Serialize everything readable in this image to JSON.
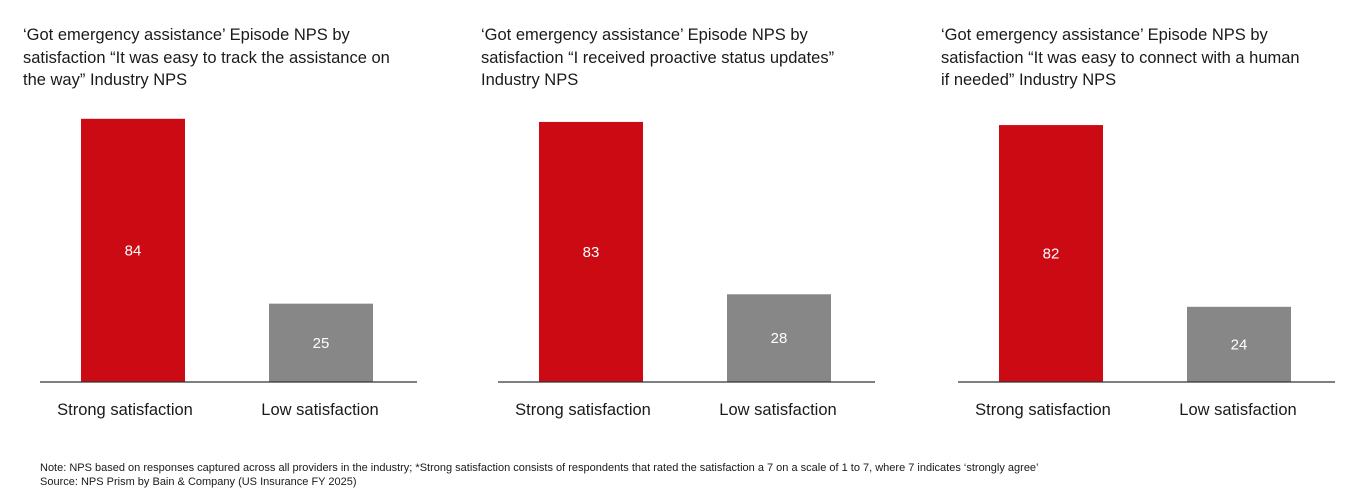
{
  "colors": {
    "strong": "#cc0a14",
    "low": "#878787",
    "axis": "#333333"
  },
  "chart_data": [
    {
      "type": "bar",
      "title": "‘Got emergency assistance’ Episode NPS by satisfaction “It was easy to track the assistance on the way” Industry NPS",
      "title_lines": [
        "‘Got emergency assistance’ Episode NPS by",
        "satisfaction “It was easy to track the assistance on",
        "the way” Industry NPS"
      ],
      "categories": [
        "Strong satisfaction",
        "Low satisfaction"
      ],
      "values": [
        84,
        25
      ],
      "ylim": [
        0,
        90
      ]
    },
    {
      "type": "bar",
      "title": "‘Got emergency assistance’ Episode NPS by satisfaction “I received proactive status updates” Industry NPS",
      "title_lines": [
        "‘Got emergency assistance’ Episode NPS by",
        "satisfaction “I received proactive status updates”",
        "Industry NPS"
      ],
      "categories": [
        "Strong satisfaction",
        "Low satisfaction"
      ],
      "values": [
        83,
        28
      ],
      "ylim": [
        0,
        90
      ]
    },
    {
      "type": "bar",
      "title": "‘Got emergency assistance’ Episode NPS by satisfaction “It was easy to connect with a human if needed” Industry NPS",
      "title_lines": [
        "‘Got emergency assistance’ Episode NPS by",
        "satisfaction “It was easy to connect with a human",
        "if needed” Industry NPS"
      ],
      "categories": [
        "Strong satisfaction",
        "Low satisfaction"
      ],
      "values": [
        82,
        24
      ],
      "ylim": [
        0,
        90
      ]
    }
  ],
  "footer": {
    "note": "Note: NPS based on responses captured across all providers in the industry; *Strong satisfaction consists of respondents that rated the satisfaction a 7 on a scale of 1 to 7, where 7 indicates ‘strongly agree’",
    "source": "Source: NPS Prism by Bain & Company (US Insurance FY 2025)"
  }
}
